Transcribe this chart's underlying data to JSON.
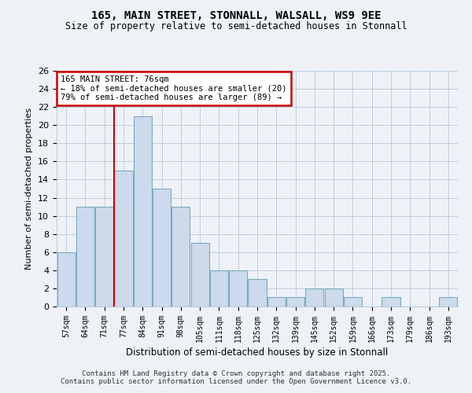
{
  "title1": "165, MAIN STREET, STONNALL, WALSALL, WS9 9EE",
  "title2": "Size of property relative to semi-detached houses in Stonnall",
  "xlabel": "Distribution of semi-detached houses by size in Stonnall",
  "ylabel": "Number of semi-detached properties",
  "categories": [
    "57sqm",
    "64sqm",
    "71sqm",
    "77sqm",
    "84sqm",
    "91sqm",
    "98sqm",
    "105sqm",
    "111sqm",
    "118sqm",
    "125sqm",
    "132sqm",
    "139sqm",
    "145sqm",
    "152sqm",
    "159sqm",
    "166sqm",
    "173sqm",
    "179sqm",
    "186sqm",
    "193sqm"
  ],
  "values": [
    6,
    11,
    11,
    15,
    21,
    13,
    11,
    7,
    4,
    4,
    3,
    1,
    1,
    2,
    2,
    1,
    0,
    1,
    0,
    0,
    1
  ],
  "bar_color": "#ccdaeb",
  "bar_edge_color": "#7aaabf",
  "vline_x": 2.5,
  "annotation_title": "165 MAIN STREET: 76sqm",
  "annotation_line1": "← 18% of semi-detached houses are smaller (20)",
  "annotation_line2": "79% of semi-detached houses are larger (89) →",
  "annotation_box_color": "#ffffff",
  "annotation_box_edge": "#cc0000",
  "vline_color": "#cc0000",
  "ylim": [
    0,
    26
  ],
  "yticks": [
    0,
    2,
    4,
    6,
    8,
    10,
    12,
    14,
    16,
    18,
    20,
    22,
    24,
    26
  ],
  "bg_color": "#eef2f7",
  "grid_color": "#b0c4d8",
  "footer": "Contains HM Land Registry data © Crown copyright and database right 2025.\nContains public sector information licensed under the Open Government Licence v3.0."
}
